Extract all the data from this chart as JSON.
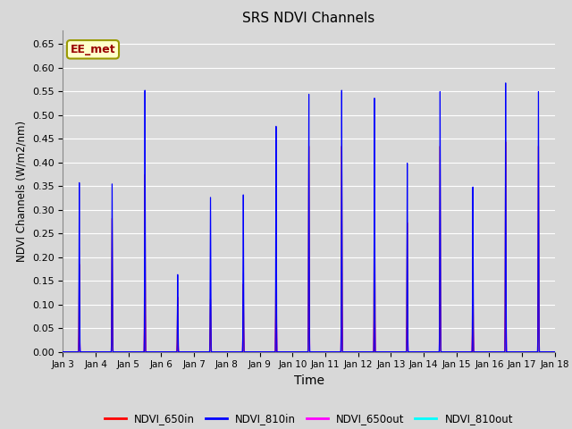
{
  "title": "SRS NDVI Channels",
  "xlabel": "Time",
  "ylabel": "NDVI Channels (W/m2/nm)",
  "ylim": [
    0.0,
    0.68
  ],
  "yticks": [
    0.0,
    0.05,
    0.1,
    0.15,
    0.2,
    0.25,
    0.3,
    0.35,
    0.4,
    0.45,
    0.5,
    0.55,
    0.6,
    0.65
  ],
  "background_color": "#d8d8d8",
  "axes_bg_color": "#d8d8d8",
  "grid_color": "#ffffff",
  "annotation_text": "EE_met",
  "annotation_bg": "#ffffcc",
  "annotation_border": "#999900",
  "annotation_text_color": "#990000",
  "colors": {
    "NDVI_650in": "#ff0000",
    "NDVI_810in": "#0000ff",
    "NDVI_650out": "#ff00ff",
    "NDVI_810out": "#00ffff"
  },
  "days": [
    3,
    4,
    5,
    6,
    7,
    8,
    9,
    10,
    11,
    12,
    13,
    14,
    15,
    16,
    17
  ],
  "day_peaks_810in": [
    0.39,
    0.387,
    0.603,
    0.178,
    0.356,
    0.362,
    0.52,
    0.594,
    0.603,
    0.585,
    0.435,
    0.6,
    0.38,
    0.62,
    0.6
  ],
  "day_peaks_650in": [
    0.2,
    0.305,
    0.405,
    0.125,
    0.12,
    0.155,
    0.24,
    0.47,
    0.47,
    0.47,
    0.295,
    0.47,
    0.215,
    0.48,
    0.47
  ],
  "day_peaks_650out": [
    0.045,
    0.07,
    0.11,
    0.025,
    0.05,
    0.06,
    0.11,
    0.11,
    0.11,
    0.11,
    0.08,
    0.11,
    0.07,
    0.11,
    0.11
  ],
  "day_peaks_810out": [
    0.025,
    0.03,
    0.05,
    0.01,
    0.02,
    0.025,
    0.05,
    0.05,
    0.05,
    0.05,
    0.03,
    0.05,
    0.03,
    0.05,
    0.05
  ],
  "xticklabels": [
    "Jan 3",
    "Jan 4",
    "Jan 5",
    "Jan 6",
    "Jan 7",
    "Jan 8",
    "Jan 9",
    "Jan 10",
    "Jan 11",
    "Jan 12",
    "Jan 13",
    "Jan 14",
    "Jan 15",
    "Jan 16",
    "Jan 17",
    "Jan 18"
  ],
  "xtick_positions": [
    3,
    4,
    5,
    6,
    7,
    8,
    9,
    10,
    11,
    12,
    13,
    14,
    15,
    16,
    17,
    18
  ]
}
